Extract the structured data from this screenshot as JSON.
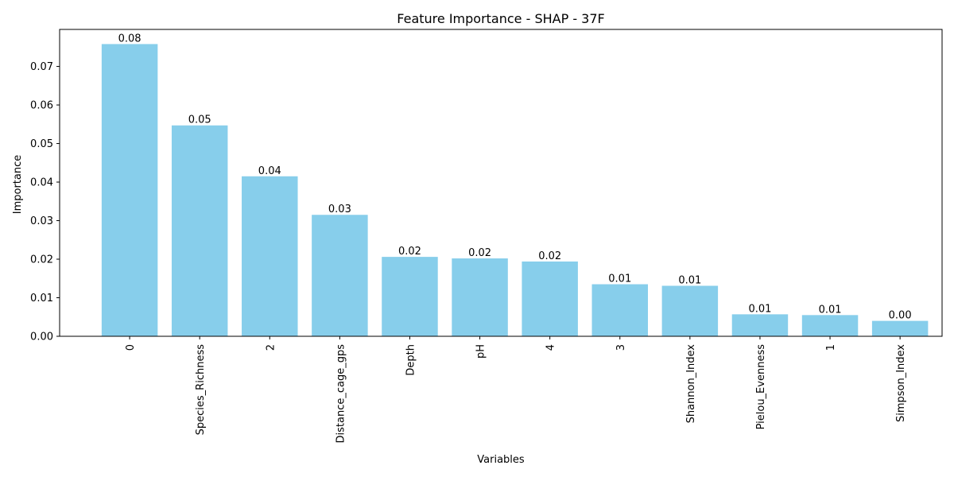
{
  "chart_data": {
    "type": "bar",
    "title": "Feature Importance - SHAP - 37F",
    "xlabel": "Variables",
    "ylabel": "Importance",
    "categories": [
      "0",
      "Species_Richness",
      "2",
      "Distance_cage_gps",
      "Depth",
      "pH",
      "4",
      "3",
      "Shannon_Index",
      "Pielou_Evenness",
      "1",
      "Simpson_Index"
    ],
    "values": [
      0.0758,
      0.0547,
      0.0415,
      0.0315,
      0.0206,
      0.0202,
      0.0194,
      0.0135,
      0.0131,
      0.0057,
      0.0055,
      0.004
    ],
    "data_labels": [
      "0.08",
      "0.05",
      "0.04",
      "0.03",
      "0.02",
      "0.02",
      "0.02",
      "0.01",
      "0.01",
      "0.01",
      "0.01",
      "0.00"
    ],
    "yticks": [
      0.0,
      0.01,
      0.02,
      0.03,
      0.04,
      0.05,
      0.06,
      0.07
    ],
    "ytick_labels": [
      "0.00",
      "0.01",
      "0.02",
      "0.03",
      "0.04",
      "0.05",
      "0.06",
      "0.07"
    ],
    "ylim": [
      0,
      0.0796
    ],
    "grid": false,
    "bar_color": "#87CEEB"
  }
}
